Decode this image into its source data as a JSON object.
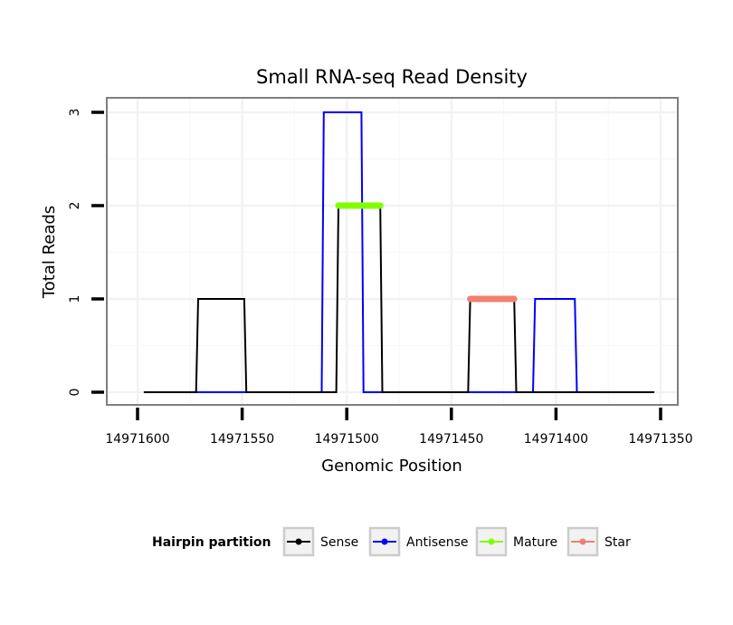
{
  "chart_data": {
    "type": "line",
    "title": "Small RNA-seq Read Density",
    "xlabel": "Genomic Position",
    "ylabel": "Total Reads",
    "x_reversed": true,
    "xlim": [
      14971620,
      14971345
    ],
    "ylim": [
      -0.12,
      3.15
    ],
    "x_ticks": [
      14971600,
      14971550,
      14971500,
      14971450,
      14971400,
      14971350
    ],
    "x_tick_labels": [
      "14971600",
      "14971550",
      "14971500",
      "14971450",
      "14971400",
      "14971350"
    ],
    "y_ticks": [
      0,
      1,
      2,
      3
    ],
    "y_tick_labels": [
      "0",
      "1",
      "2",
      "3"
    ],
    "grid": true,
    "legend_position": "bottom",
    "legend_title": "Hairpin partition",
    "series": [
      {
        "name": "Sense",
        "color": "#000000",
        "x": [
          14971597,
          14971572,
          14971571,
          14971549,
          14971548,
          14971505,
          14971504,
          14971484,
          14971483,
          14971442,
          14971441,
          14971420,
          14971419,
          14971353
        ],
        "y": [
          0,
          0,
          1,
          1,
          0,
          0,
          2,
          2,
          0,
          0,
          1,
          1,
          0,
          0
        ]
      },
      {
        "name": "Antisense",
        "color": "#0000ff",
        "x": [
          14971572,
          14971549,
          14971512,
          14971511,
          14971493,
          14971492,
          14971420,
          14971411,
          14971410,
          14971391,
          14971390
        ],
        "y": [
          0,
          0,
          0,
          3,
          3,
          0,
          0,
          0,
          1,
          1,
          0
        ]
      },
      {
        "name": "Mature",
        "color": "#7fff00",
        "x": [
          14971504,
          14971484
        ],
        "y": [
          2,
          2
        ]
      },
      {
        "name": "Star",
        "color": "#f08070",
        "x": [
          14971441,
          14971420
        ],
        "y": [
          1,
          1
        ]
      }
    ]
  }
}
